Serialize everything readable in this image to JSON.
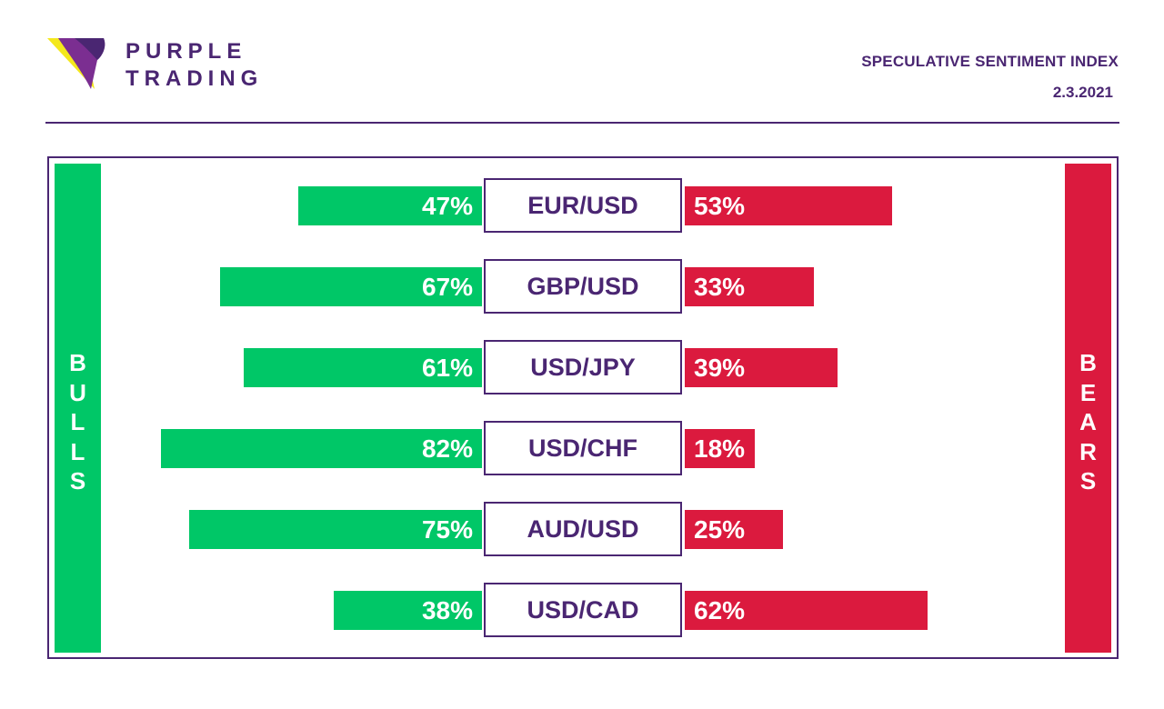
{
  "brand": {
    "line1": "PURPLE",
    "line2": "TRADING",
    "colors": {
      "purple": "#4a2672",
      "magenta": "#7b2e91",
      "yellow": "#f4e81c"
    }
  },
  "header": {
    "title": "SPECULATIVE SENTIMENT INDEX",
    "date": "2.3.2021"
  },
  "chart_data": {
    "type": "bar",
    "orientation": "diverging-horizontal",
    "categories": [
      "EUR/USD",
      "GBP/USD",
      "USD/JPY",
      "USD/CHF",
      "AUD/USD",
      "USD/CAD"
    ],
    "series": [
      {
        "name": "BULLS",
        "values": [
          47,
          67,
          61,
          82,
          75,
          38
        ],
        "labels": [
          "47%",
          "67%",
          "61%",
          "82%",
          "75%",
          "38%"
        ],
        "color": "#00c767"
      },
      {
        "name": "BEARS",
        "values": [
          53,
          33,
          39,
          18,
          25,
          62
        ],
        "labels": [
          "53%",
          "33%",
          "39%",
          "18%",
          "25%",
          "62%"
        ],
        "color": "#db1a3e"
      }
    ],
    "unit": "%",
    "xlim": [
      0,
      100
    ],
    "grid": false,
    "legend": "vertical side bars: BULLS left, BEARS right"
  }
}
